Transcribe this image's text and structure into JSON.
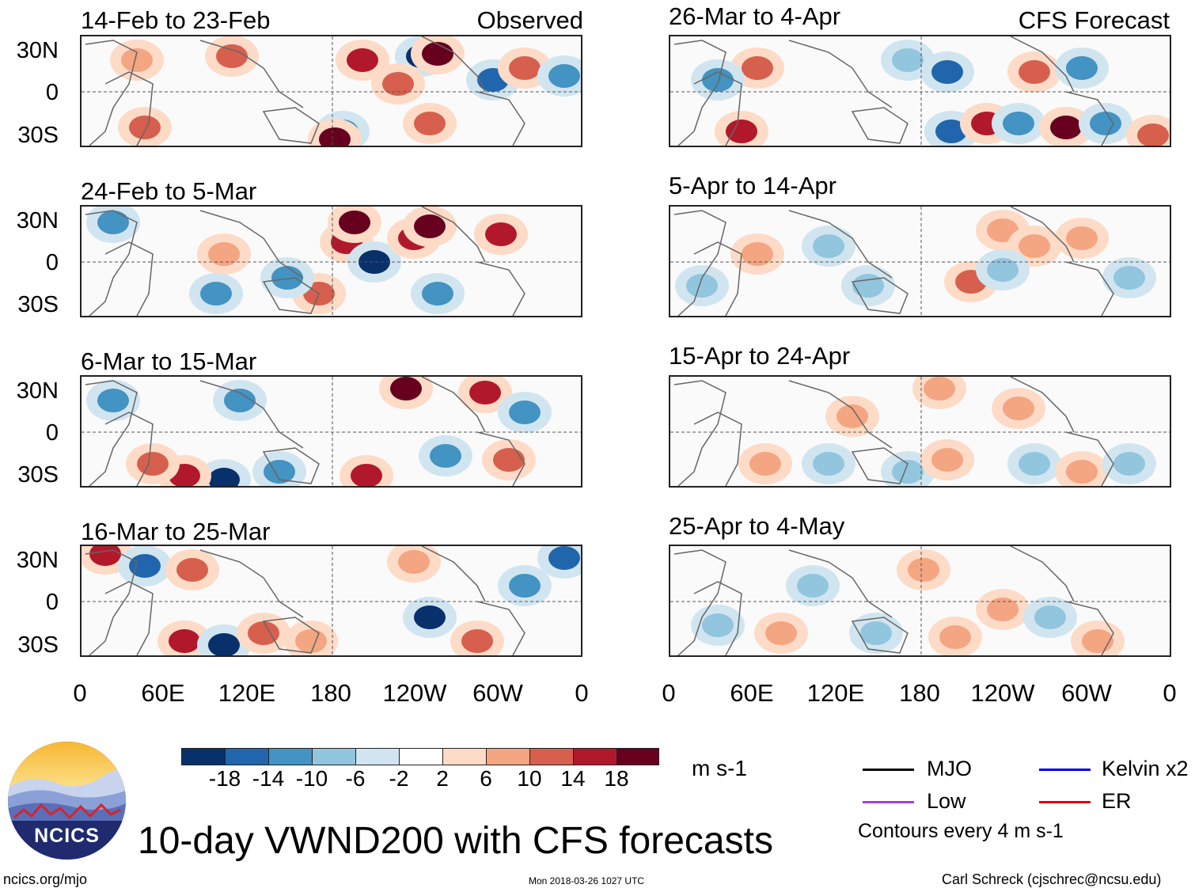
{
  "colors": {
    "neg18": "#08306b",
    "neg14": "#2166ac",
    "neg10": "#4393c3",
    "neg6": "#92c5de",
    "neg2": "#d1e5f0",
    "zero": "#ffffff",
    "pos2": "#fddbc7",
    "pos6": "#f4a582",
    "pos10": "#d6604d",
    "pos14": "#b2182b",
    "pos18": "#67001f",
    "mjo": "#000000",
    "kelvin": "#0000dd",
    "low": "#a040e0",
    "er": "#dd0000"
  },
  "observed": {
    "label": "Observed",
    "panels": [
      {
        "title": "14-Feb to 23-Feb"
      },
      {
        "title": "24-Feb to 5-Mar"
      },
      {
        "title": "6-Mar to 15-Mar"
      },
      {
        "title": "16-Mar to 25-Mar"
      }
    ]
  },
  "forecast": {
    "label": "CFS Forecast",
    "panels": [
      {
        "title": "26-Mar to 4-Apr"
      },
      {
        "title": "5-Apr to 14-Apr"
      },
      {
        "title": "15-Apr to 24-Apr"
      },
      {
        "title": "25-Apr to 4-May"
      }
    ]
  },
  "lat_labels": [
    "30N",
    "0",
    "30S"
  ],
  "lon_labels": [
    "0",
    "60E",
    "120E",
    "180",
    "120W",
    "60W",
    "0"
  ],
  "colorbar": {
    "ticks": [
      "-18",
      "-14",
      "-10",
      "-6",
      "-2",
      "2",
      "6",
      "10",
      "14",
      "18"
    ],
    "units": "m s-1"
  },
  "legend": {
    "mjo": "MJO",
    "kelvin": "Kelvin x2",
    "low": "Low",
    "er": "ER",
    "contours": "Contours every 4 m s-1"
  },
  "logo": {
    "text": "NCICS"
  },
  "main_title": "10-day VWND200 with CFS forecasts",
  "footer": {
    "url": "ncics.org/mjo",
    "timestamp": "Mon 2018-03-26 1027 UTC",
    "author": "Carl Schreck (cjschrec@ncsu.edu)"
  }
}
